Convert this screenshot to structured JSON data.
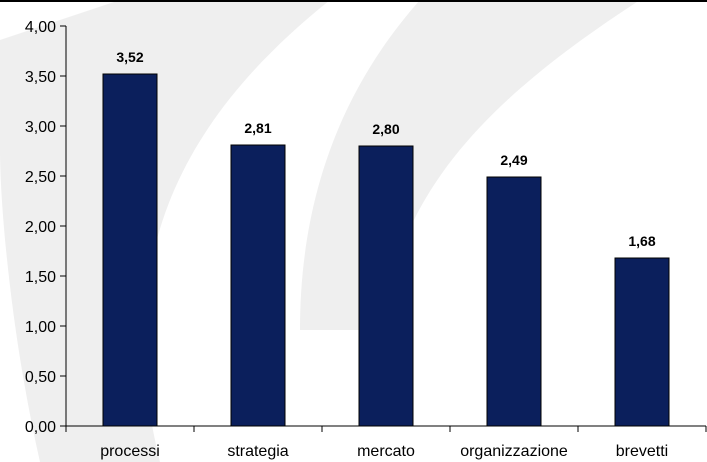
{
  "chart_data": {
    "type": "bar",
    "title": "",
    "xlabel": "",
    "ylabel": "",
    "categories": [
      "processi",
      "strategia",
      "mercato",
      "organizzazione",
      "brevetti"
    ],
    "values": [
      3.52,
      2.81,
      2.8,
      2.49,
      1.68
    ],
    "data_labels": [
      "3,52",
      "2,81",
      "2,80",
      "2,49",
      "1,68"
    ],
    "ylim": [
      0,
      4
    ],
    "yticks": [
      0,
      0.5,
      1,
      1.5,
      2,
      2.5,
      3,
      3.5,
      4
    ],
    "ytick_labels": [
      "0,00",
      "0,50",
      "1,00",
      "1,50",
      "2,00",
      "2,50",
      "3,00",
      "3,50",
      "4,00"
    ],
    "grid": false,
    "legend": "none",
    "colors": {
      "bar": "#0b1f5c",
      "axis": "#000000",
      "watermark": "#efefef",
      "background": "#ffffff"
    }
  }
}
